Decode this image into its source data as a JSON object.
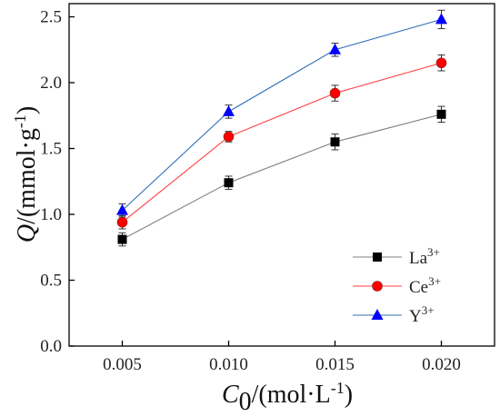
{
  "chart_data": {
    "type": "line",
    "title": "",
    "x": [
      0.005,
      0.01,
      0.015,
      0.02
    ],
    "x_tick_labels": [
      "0.005",
      "0.010",
      "0.015",
      "0.020"
    ],
    "y_ticks": [
      0.0,
      0.5,
      1.0,
      1.5,
      2.0,
      2.5
    ],
    "y_tick_labels": [
      "0.0",
      "0.5",
      "1.0",
      "1.5",
      "2.0",
      "2.5"
    ],
    "xlim": [
      0.0025,
      0.0225
    ],
    "ylim": [
      0.0,
      2.6
    ],
    "xlabel": {
      "var": "C",
      "sub": "0",
      "rest": "/(mol·L",
      "sup": "-1",
      "end": ")"
    },
    "ylabel": {
      "var": "Q",
      "rest": "/(mmol·g",
      "sup": "-1",
      "end": ")"
    },
    "grid": false,
    "legend_position": "bottom-right",
    "series": [
      {
        "name": "La",
        "name_sup": "3+",
        "marker": "square",
        "line_color": "#7f7f7f",
        "marker_color": "#000000",
        "values": [
          0.81,
          1.24,
          1.55,
          1.76
        ],
        "errors": [
          0.05,
          0.05,
          0.06,
          0.06
        ]
      },
      {
        "name": "Ce",
        "name_sup": "3+",
        "marker": "circle",
        "line_color": "#ff4040",
        "marker_color": "#ff0000",
        "values": [
          0.94,
          1.59,
          1.92,
          2.15
        ],
        "errors": [
          0.05,
          0.04,
          0.06,
          0.06
        ]
      },
      {
        "name": "Y",
        "name_sup": "3+",
        "marker": "triangle",
        "line_color": "#2f6fb7",
        "marker_color": "#0000ff",
        "values": [
          1.03,
          1.78,
          2.25,
          2.48
        ],
        "errors": [
          0.05,
          0.05,
          0.05,
          0.07
        ]
      }
    ]
  }
}
